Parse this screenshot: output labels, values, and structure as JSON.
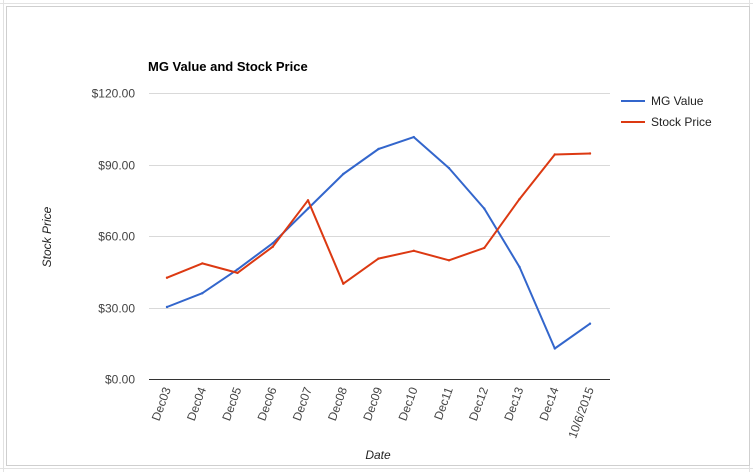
{
  "chart_data": {
    "type": "line",
    "title": "MG Value and Stock Price",
    "xlabel": "Date",
    "ylabel": "Stock Price",
    "categories": [
      "Dec03",
      "Dec04",
      "Dec05",
      "Dec06",
      "Dec07",
      "Dec08",
      "Dec09",
      "Dec10",
      "Dec11",
      "Dec12",
      "Dec13",
      "Dec14",
      "10/6/2015"
    ],
    "ylim": [
      0,
      120
    ],
    "yticks": [
      "$0.00",
      "$30.00",
      "$60.00",
      "$90.00",
      "$120.00"
    ],
    "ytick_values": [
      0,
      30,
      60,
      90,
      120
    ],
    "grid": true,
    "legend_position": "right",
    "series": [
      {
        "name": "MG Value",
        "color": "#3366cc",
        "values": [
          30.2,
          36.0,
          46.0,
          57.0,
          71.5,
          86.0,
          96.5,
          101.5,
          88.5,
          71.5,
          47.0,
          12.8,
          23.2
        ]
      },
      {
        "name": "Stock Price",
        "color": "#dc3912",
        "values": [
          42.5,
          48.5,
          44.5,
          55.5,
          75.0,
          40.0,
          50.5,
          53.8,
          49.8,
          55.0,
          75.5,
          94.2,
          94.6
        ]
      }
    ]
  }
}
